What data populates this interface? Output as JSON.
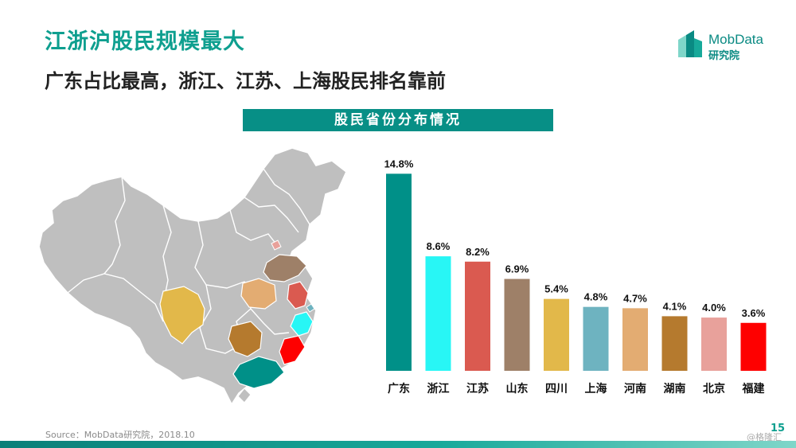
{
  "header": {
    "title": "江浙沪股民规模最大",
    "subtitle": "广东占比最高，浙江、江苏、上海股民排名靠前"
  },
  "logo": {
    "brand": "MobData",
    "sub": "研究院"
  },
  "chart_data": {
    "type": "bar",
    "title": "股民省份分布情况",
    "categories": [
      "广东",
      "浙江",
      "江苏",
      "山东",
      "四川",
      "上海",
      "河南",
      "湖南",
      "北京",
      "福建"
    ],
    "values": [
      14.8,
      8.6,
      8.2,
      6.9,
      5.4,
      4.8,
      4.7,
      4.1,
      4.0,
      3.6
    ],
    "value_labels": [
      "14.8%",
      "8.6%",
      "8.2%",
      "6.9%",
      "5.4%",
      "4.8%",
      "4.7%",
      "4.1%",
      "4.0%",
      "3.6%"
    ],
    "colors": [
      "#009088",
      "#28f6f5",
      "#da5a50",
      "#9e8068",
      "#e2b84a",
      "#6eb3c0",
      "#e3ac72",
      "#b57a2e",
      "#e8a19b",
      "#fe0000"
    ],
    "unit": "%",
    "ylim": [
      0,
      15
    ],
    "xlabel": "",
    "ylabel": "",
    "grid": false,
    "legend": "none"
  },
  "footer": {
    "source": "Source：MobData研究院，2018.10",
    "page_number": "15",
    "watermark": "@格隆汇"
  }
}
